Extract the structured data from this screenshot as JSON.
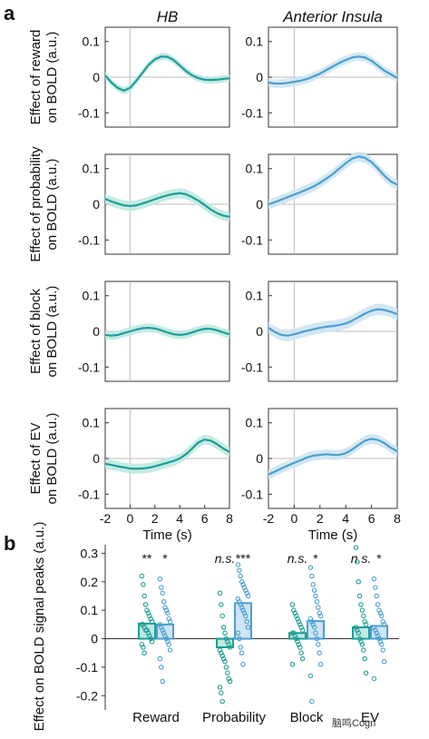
{
  "panel_a_label": "a",
  "panel_b_label": "b",
  "watermark": "脑鸣Cogn",
  "colors": {
    "hb": "#1e9e96",
    "insula": "#4a9fcf",
    "hb_band": "#bfe9e2",
    "insula_band": "#cfe4f4"
  },
  "chart_data": [
    {
      "type": "line",
      "panel": "a",
      "columns": [
        "HB",
        "Anterior Insula"
      ],
      "row_labels": [
        [
          "Effect of reward",
          "on BOLD (a.u.)"
        ],
        [
          "Effect of probability",
          "on BOLD (a.u.)"
        ],
        [
          "Effect of block",
          "on BOLD (a.u.)"
        ],
        [
          "Effect of EV",
          "on BOLD (a.u.)"
        ]
      ],
      "xlabel": "Time (s)",
      "xlim": [
        -2,
        8
      ],
      "x_ticks": [
        "-2",
        "0",
        "2",
        "4",
        "6",
        "8"
      ],
      "ylim": [
        -0.14,
        0.14
      ],
      "y_ticks": [
        "0.1",
        "0",
        "-0.1"
      ],
      "x": [
        -2,
        -1.5,
        -1,
        -0.5,
        0,
        0.5,
        1,
        1.5,
        2,
        2.5,
        3,
        3.5,
        4,
        4.5,
        5,
        5.5,
        6,
        6.5,
        7,
        7.5,
        8
      ],
      "series": [
        {
          "row": 0,
          "col": 0,
          "values": [
            0.005,
            -0.015,
            -0.03,
            -0.038,
            -0.03,
            -0.01,
            0.012,
            0.035,
            0.05,
            0.058,
            0.057,
            0.048,
            0.033,
            0.017,
            0.005,
            -0.003,
            -0.007,
            -0.008,
            -0.007,
            -0.005,
            -0.003
          ],
          "error": 0.01
        },
        {
          "row": 0,
          "col": 1,
          "values": [
            -0.015,
            -0.018,
            -0.018,
            -0.016,
            -0.013,
            -0.01,
            -0.005,
            0.002,
            0.01,
            0.02,
            0.03,
            0.04,
            0.048,
            0.055,
            0.058,
            0.055,
            0.046,
            0.032,
            0.018,
            0.008,
            -0.002
          ],
          "error": 0.012
        },
        {
          "row": 1,
          "col": 0,
          "values": [
            0.015,
            0.008,
            0.002,
            -0.003,
            -0.005,
            -0.003,
            0.002,
            0.008,
            0.014,
            0.02,
            0.025,
            0.029,
            0.031,
            0.028,
            0.02,
            0.01,
            -0.002,
            -0.015,
            -0.025,
            -0.032,
            -0.035
          ],
          "error": 0.014
        },
        {
          "row": 1,
          "col": 1,
          "values": [
            0.0,
            0.006,
            0.013,
            0.02,
            0.027,
            0.034,
            0.042,
            0.05,
            0.06,
            0.072,
            0.085,
            0.1,
            0.115,
            0.128,
            0.134,
            0.13,
            0.118,
            0.1,
            0.08,
            0.064,
            0.055
          ],
          "error": 0.014
        },
        {
          "row": 2,
          "col": 0,
          "values": [
            -0.01,
            -0.012,
            -0.01,
            -0.005,
            0.0,
            0.005,
            0.009,
            0.01,
            0.008,
            0.003,
            -0.003,
            -0.008,
            -0.01,
            -0.008,
            -0.003,
            0.003,
            0.007,
            0.007,
            0.003,
            -0.003,
            -0.008
          ],
          "error": 0.012
        },
        {
          "row": 2,
          "col": 1,
          "values": [
            0.01,
            -0.002,
            -0.01,
            -0.012,
            -0.008,
            -0.003,
            0.002,
            0.006,
            0.01,
            0.013,
            0.015,
            0.018,
            0.022,
            0.03,
            0.04,
            0.05,
            0.058,
            0.062,
            0.06,
            0.055,
            0.048
          ],
          "error": 0.016
        },
        {
          "row": 3,
          "col": 0,
          "values": [
            -0.015,
            -0.018,
            -0.022,
            -0.025,
            -0.028,
            -0.029,
            -0.028,
            -0.026,
            -0.022,
            -0.017,
            -0.012,
            -0.007,
            0.0,
            0.012,
            0.028,
            0.045,
            0.053,
            0.05,
            0.04,
            0.028,
            0.018
          ],
          "error": 0.014
        },
        {
          "row": 3,
          "col": 1,
          "values": [
            -0.045,
            -0.037,
            -0.028,
            -0.02,
            -0.012,
            -0.005,
            0.003,
            0.008,
            0.01,
            0.012,
            0.01,
            0.01,
            0.015,
            0.025,
            0.038,
            0.05,
            0.055,
            0.052,
            0.043,
            0.03,
            0.02
          ],
          "error": 0.014
        }
      ]
    },
    {
      "type": "bar",
      "panel": "b",
      "ylabel": "Effect on BOLD signal peaks (a.u.)",
      "ylim": [
        -0.25,
        0.33
      ],
      "y_ticks": [
        "0.3",
        "0.2",
        "0.1",
        "0",
        "-0.1",
        "-0.2"
      ],
      "categories": [
        "Reward",
        "Probability",
        "Block",
        "EV"
      ],
      "series": [
        {
          "region": "HB",
          "values": [
            0.053,
            -0.03,
            0.02,
            0.04
          ],
          "significance": [
            "**",
            "n.s.",
            "n.s.",
            "n.s."
          ]
        },
        {
          "region": "Anterior Insula",
          "values": [
            0.05,
            0.125,
            0.062,
            0.045
          ],
          "significance": [
            "*",
            "***",
            "*",
            "*"
          ]
        }
      ],
      "points": [
        [
          [
            0.22,
            0.19,
            0.15,
            0.12,
            0.1,
            0.09,
            0.08,
            0.07,
            0.06,
            0.05,
            0.05,
            0.04,
            0.03,
            0.03,
            0.02,
            0.01,
            0.0,
            -0.01,
            -0.02,
            -0.03,
            -0.05
          ],
          [
            0.21,
            0.18,
            0.16,
            0.13,
            0.11,
            0.1,
            0.09,
            0.07,
            0.06,
            0.05,
            0.04,
            0.03,
            0.02,
            0.01,
            0.0,
            -0.01,
            -0.02,
            -0.04,
            -0.07,
            -0.1,
            -0.15
          ]
        ],
        [
          [
            0.16,
            0.12,
            0.08,
            0.04,
            0.02,
            0.0,
            -0.01,
            -0.02,
            -0.03,
            -0.04,
            -0.05,
            -0.06,
            -0.07,
            -0.08,
            -0.1,
            -0.12,
            -0.14,
            -0.15,
            -0.17,
            -0.19,
            -0.22
          ],
          [
            0.26,
            0.24,
            0.22,
            0.2,
            0.19,
            0.18,
            0.17,
            0.16,
            0.15,
            0.14,
            0.13,
            0.12,
            0.11,
            0.1,
            0.09,
            0.08,
            0.06,
            0.04,
            0.02,
            0.0,
            -0.03,
            -0.05,
            -0.09
          ]
        ],
        [
          [
            0.12,
            0.1,
            0.09,
            0.08,
            0.07,
            0.06,
            0.05,
            0.04,
            0.03,
            0.02,
            0.02,
            0.01,
            0.0,
            -0.01,
            -0.02,
            -0.03,
            -0.05,
            -0.07,
            -0.09
          ],
          [
            0.25,
            0.22,
            0.19,
            0.17,
            0.15,
            0.13,
            0.11,
            0.09,
            0.08,
            0.07,
            0.06,
            0.05,
            0.04,
            0.02,
            0.0,
            -0.02,
            -0.05,
            -0.09,
            -0.13,
            -0.22
          ]
        ],
        [
          [
            0.32,
            0.27,
            0.2,
            0.15,
            0.12,
            0.1,
            0.08,
            0.06,
            0.05,
            0.04,
            0.03,
            0.02,
            0.0,
            -0.01,
            -0.02,
            -0.04,
            -0.07,
            -0.12
          ],
          [
            0.21,
            0.18,
            0.15,
            0.12,
            0.1,
            0.09,
            0.08,
            0.06,
            0.05,
            0.04,
            0.03,
            0.02,
            0.01,
            0.0,
            -0.01,
            -0.02,
            -0.04,
            -0.08,
            -0.14
          ]
        ]
      ]
    }
  ]
}
